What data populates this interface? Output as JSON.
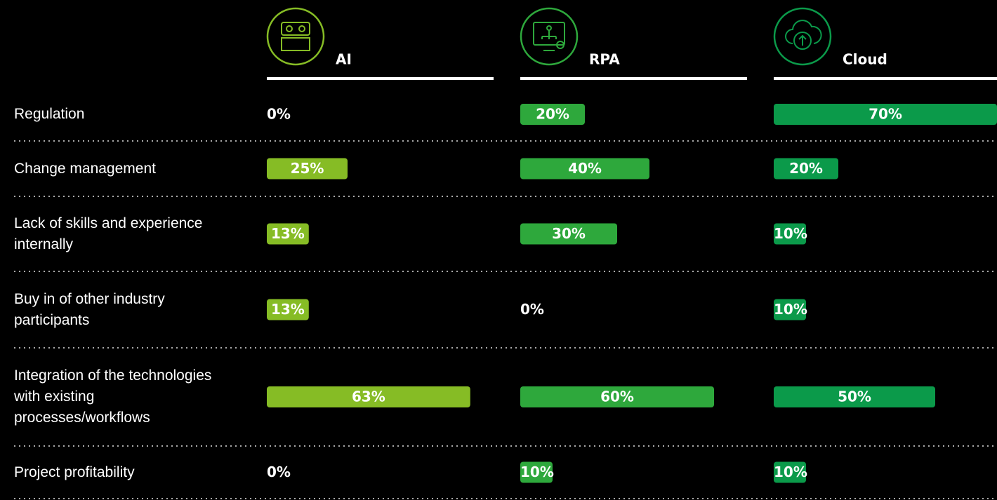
{
  "chart_data": {
    "type": "bar",
    "categories": [
      "Regulation",
      "Change management",
      "Lack of skills and experience internally",
      "Buy in of other industry participants",
      "Integration of the technologies with existing processes/workflows",
      "Project profitability"
    ],
    "series": [
      {
        "name": "AI",
        "color": "#86bc25",
        "values": [
          0,
          25,
          13,
          13,
          63,
          0
        ],
        "value_labels": [
          "0%",
          "25%",
          "13%",
          "13%",
          "63%",
          "0%"
        ]
      },
      {
        "name": "RPA",
        "color": "#2ea83c",
        "values": [
          20,
          40,
          30,
          0,
          60,
          10
        ],
        "value_labels": [
          "20%",
          "40%",
          "30%",
          "0%",
          "60%",
          "10%"
        ]
      },
      {
        "name": "Cloud",
        "color": "#0b9a4a",
        "values": [
          70,
          20,
          10,
          10,
          50,
          10
        ],
        "value_labels": [
          "70%",
          "20%",
          "10%",
          "10%",
          "50%",
          "10%"
        ]
      }
    ]
  }
}
